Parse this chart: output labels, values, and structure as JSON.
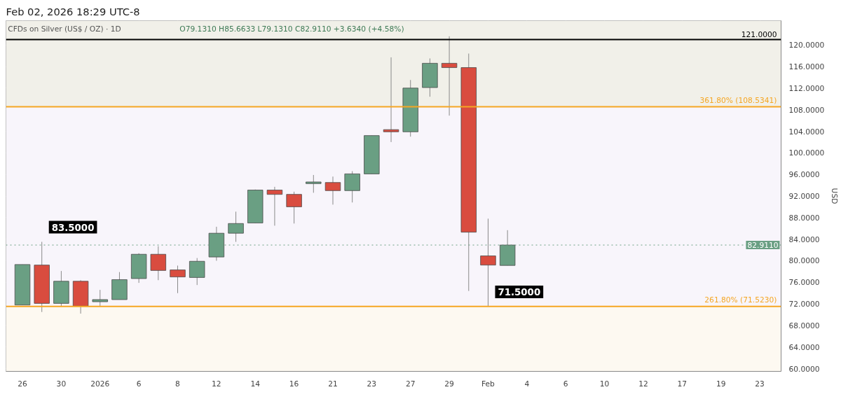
{
  "chart_data": {
    "type": "candlestick",
    "title": "CFDs on Silver (US$ / OZ) · 1D",
    "subtitle": "O79.1310 H85.6633 L79.1310 C82.9110 +3.6340 (+4.58%)",
    "ylabel": "USD",
    "categories": [
      "26",
      null,
      "30",
      null,
      "2026",
      null,
      "6",
      null,
      "8",
      null,
      "12",
      null,
      "14",
      null,
      "16",
      null,
      "21",
      null,
      "23",
      null,
      "27",
      null,
      "29",
      null,
      "Feb",
      null,
      "4",
      null,
      "6",
      null,
      "10",
      null,
      "12",
      null,
      "17",
      null,
      "19",
      null,
      "23"
    ],
    "ohlc": [
      [
        71.8,
        79.3,
        71.8,
        79.3
      ],
      [
        79.2,
        83.5,
        70.5,
        72.1
      ],
      [
        72.1,
        78.1,
        71.5,
        76.2
      ],
      [
        76.2,
        76.4,
        70.2,
        71.6
      ],
      [
        72.4,
        74.6,
        71.5,
        72.8
      ],
      [
        72.8,
        77.9,
        72.8,
        76.5
      ],
      [
        76.7,
        81.4,
        75.9,
        81.2
      ],
      [
        81.2,
        82.7,
        76.4,
        78.2
      ],
      [
        78.3,
        79.1,
        74.0,
        77.0
      ],
      [
        76.9,
        80.5,
        75.5,
        79.9
      ],
      [
        80.7,
        86.3,
        80.0,
        85.1
      ],
      [
        85.1,
        89.1,
        83.5,
        86.9
      ],
      [
        87.0,
        93.2,
        87.0,
        93.1
      ],
      [
        93.1,
        93.7,
        86.5,
        92.3
      ],
      [
        92.3,
        92.8,
        86.9,
        90.0
      ],
      [
        94.3,
        95.9,
        92.6,
        94.6
      ],
      [
        94.5,
        95.6,
        90.4,
        93.0
      ],
      [
        93.0,
        96.6,
        90.8,
        96.1
      ],
      [
        96.1,
        103.2,
        96.1,
        103.2
      ],
      [
        104.3,
        117.7,
        102.0,
        103.9
      ],
      [
        103.9,
        113.5,
        103.0,
        112.0
      ],
      [
        112.1,
        117.5,
        110.4,
        116.6
      ],
      [
        116.6,
        121.6,
        106.9,
        115.8
      ],
      [
        115.8,
        118.4,
        74.4,
        85.3
      ],
      [
        80.9,
        87.8,
        71.5,
        79.2
      ],
      [
        79.131,
        85.6633,
        79.131,
        82.911
      ],
      null,
      null,
      null,
      null,
      null,
      null,
      null,
      null,
      null,
      null,
      null,
      null,
      null
    ],
    "colors": [
      "#6a9f83",
      "#d94c3f",
      "#6a9f83",
      "#d94c3f",
      "#6a9f83",
      "#6a9f83",
      "#6a9f83",
      "#d94c3f",
      "#d94c3f",
      "#6a9f83",
      "#6a9f83",
      "#6a9f83",
      "#6a9f83",
      "#d94c3f",
      "#d94c3f",
      "#6a9f83",
      "#d94c3f",
      "#6a9f83",
      "#6a9f83",
      "#d94c3f",
      "#6a9f83",
      "#6a9f83",
      "#d94c3f",
      "#d94c3f",
      "#d94c3f",
      "#6a9f83",
      null,
      null,
      null,
      null,
      null,
      null,
      null,
      null,
      null,
      null,
      null,
      null,
      null
    ],
    "ylim": [
      59.5,
      124.5
    ],
    "yticks": [
      {
        "value": 60,
        "label": "60.0000"
      },
      {
        "value": 64,
        "label": "64.0000"
      },
      {
        "value": 68,
        "label": "68.0000"
      },
      {
        "value": 72,
        "label": "72.0000"
      },
      {
        "value": 76,
        "label": "76.0000"
      },
      {
        "value": 80,
        "label": "80.0000"
      },
      {
        "value": 84,
        "label": "84.0000"
      },
      {
        "value": 88,
        "label": "88.0000"
      },
      {
        "value": 92,
        "label": "92.0000"
      },
      {
        "value": 96,
        "label": "96.0000"
      },
      {
        "value": 100,
        "label": "100.0000"
      },
      {
        "value": 104,
        "label": "104.0000"
      },
      {
        "value": 108,
        "label": "108.0000"
      },
      {
        "value": 112,
        "label": "112.0000"
      },
      {
        "value": 116,
        "label": "116.0000"
      },
      {
        "value": 120,
        "label": "120.0000"
      }
    ],
    "ref_lines": [
      {
        "axis": "y",
        "value": 108.5341,
        "label": "361.80% (108.5341)",
        "color": "#f5a623",
        "line_style": "solid"
      },
      {
        "axis": "y",
        "value": 71.523,
        "label": "261.80% (71.5230)",
        "color": "#f5a623",
        "line_style": "solid"
      },
      {
        "axis": "y",
        "value": 121,
        "label": "121.0000",
        "color": "#000000",
        "line_style": "solid"
      },
      {
        "axis": "y",
        "value": 82.911,
        "label": "82.9110",
        "color": "#6a9f83",
        "line_style": "dotted"
      }
    ],
    "bands": [
      {
        "axis": "y",
        "from": 108.5341,
        "to": 124.5,
        "label": null,
        "color": "#f1f0e9"
      },
      {
        "axis": "y",
        "from": 71.523,
        "to": 108.5341,
        "label": null,
        "color": "#f8f5fb"
      },
      {
        "axis": "y",
        "from": 59.5,
        "to": 71.523,
        "label": null,
        "color": "#fdf9f1"
      }
    ],
    "annotations": [
      "Feb 02, 2026 18:29 UTC-8",
      {
        "text": "83.5000",
        "y": 83.5
      },
      {
        "text": "71.5000",
        "x": "Feb",
        "y": 71.5
      }
    ],
    "grid": true
  }
}
